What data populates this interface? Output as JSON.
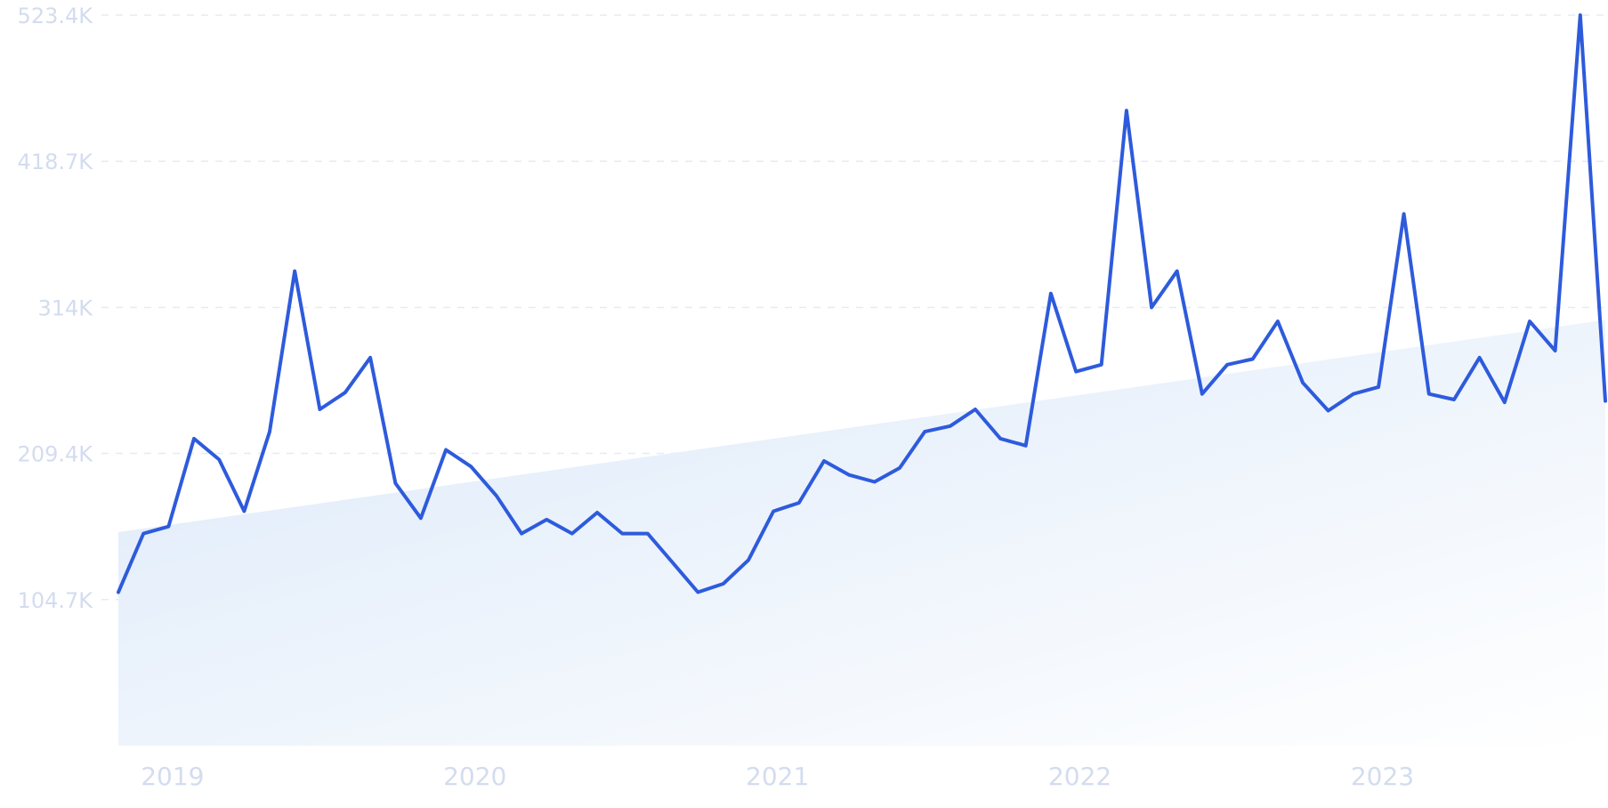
{
  "chart_data": {
    "type": "line",
    "title": "",
    "xlabel": "",
    "ylabel": "",
    "x_tick_labels": [
      "2019",
      "2020",
      "2021",
      "2022",
      "2023"
    ],
    "x_tick_values": [
      2019.0,
      2020.0,
      2021.0,
      2022.0,
      2023.0
    ],
    "y_tick_labels": [
      "104.7K",
      "209.4K",
      "314K",
      "418.7K",
      "523.4K"
    ],
    "y_tick_values": [
      104700,
      209400,
      314000,
      418700,
      523400
    ],
    "ylim": [
      0,
      523400
    ],
    "xlim": [
      2018.917,
      2023.833
    ],
    "grid": "horizontal dashed",
    "legend": "none",
    "colors": {
      "line": "#2e5bdc",
      "trend_fill_top": "#dce9f9",
      "trend_fill_bottom": "#ffffff",
      "grid": "#e6ebf3",
      "tick_text": "#d3dcef"
    },
    "trend": {
      "start": [
        2018.917,
        153000
      ],
      "end": [
        2023.833,
        305000
      ]
    },
    "series": [
      {
        "x": [
          2018.917,
          2019.0,
          2019.083,
          2019.167,
          2019.25,
          2019.333,
          2019.417,
          2019.5,
          2019.583,
          2019.667,
          2019.75,
          2019.833,
          2019.917,
          2020.0,
          2020.083,
          2020.167,
          2020.25,
          2020.333,
          2020.417,
          2020.5,
          2020.583,
          2020.667,
          2020.75,
          2020.833,
          2020.917,
          2021.0,
          2021.083,
          2021.167,
          2021.25,
          2021.333,
          2021.417,
          2021.5,
          2021.583,
          2021.667,
          2021.75,
          2021.833,
          2021.917,
          2022.0,
          2022.083,
          2022.167,
          2022.25,
          2022.333,
          2022.417,
          2022.5,
          2022.583,
          2022.667,
          2022.75,
          2022.833,
          2022.917,
          2023.0,
          2023.083,
          2023.167,
          2023.25,
          2023.333,
          2023.417,
          2023.5,
          2023.583,
          2023.667,
          2023.75,
          2023.833
        ],
        "values": [
          110000,
          152000,
          157000,
          220000,
          205000,
          168000,
          225000,
          340000,
          241000,
          253000,
          278000,
          188000,
          163000,
          212000,
          200000,
          179000,
          152000,
          162000,
          152000,
          167000,
          152000,
          152000,
          131000,
          110000,
          116000,
          133000,
          168000,
          174000,
          204000,
          194000,
          189000,
          199000,
          225000,
          229000,
          241000,
          220000,
          215000,
          324000,
          268000,
          273000,
          455000,
          314000,
          340000,
          252000,
          273000,
          277000,
          304000,
          260000,
          240000,
          252000,
          257000,
          381000,
          252000,
          248000,
          278000,
          246000,
          304000,
          283000,
          523400,
          247000
        ]
      }
    ]
  }
}
